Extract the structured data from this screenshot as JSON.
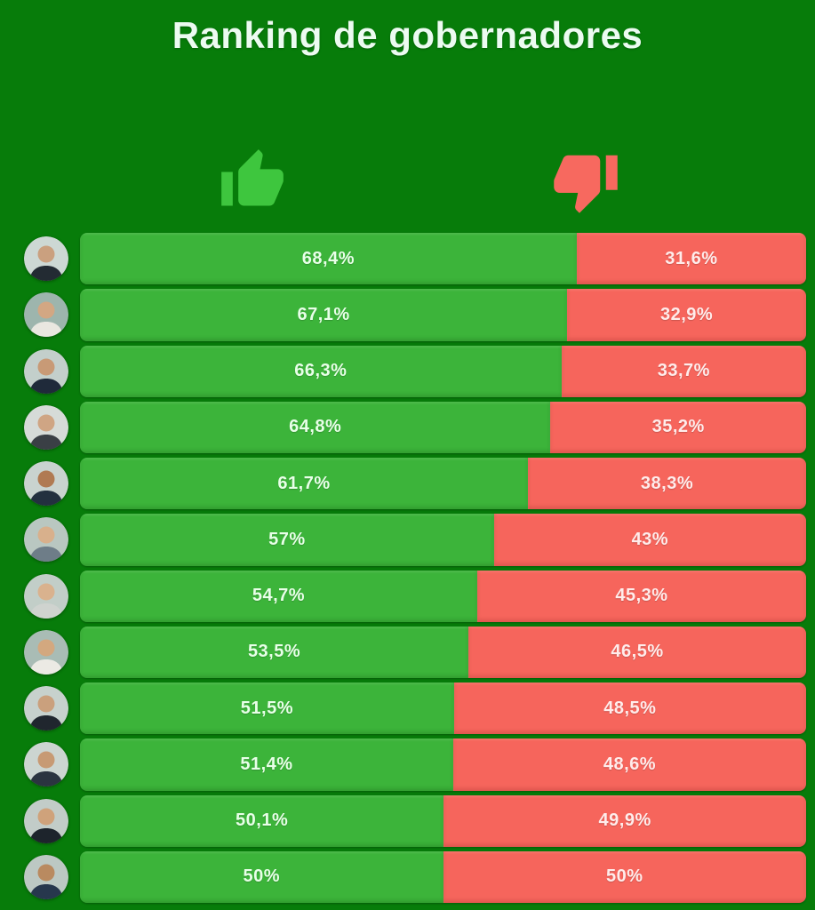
{
  "title": "Ranking de gobernadores",
  "colors": {
    "page_bg": "#077c0a",
    "title_color": "#ecfbf1",
    "bar_green": "#3cb43a",
    "bar_red": "#f6655c",
    "thumb_up": "#3ec63e",
    "thumb_down": "#f7695f",
    "label_on_green": "#e8ffe8",
    "label_on_red": "#ffeceb"
  },
  "legend": {
    "approve_icon": "thumbs-up-icon",
    "disapprove_icon": "thumbs-down-icon"
  },
  "chart_data": {
    "type": "bar",
    "orientation": "horizontal-stacked",
    "title": "Ranking de gobernadores",
    "series": [
      {
        "name": "aprobacion",
        "color": "#3cb43a"
      },
      {
        "name": "desaprobacion",
        "color": "#f6655c"
      }
    ],
    "value_range": [
      0,
      100
    ],
    "rows": [
      {
        "approve": 68.4,
        "disapprove": 31.6,
        "approve_label": "68,4%",
        "disapprove_label": "31,6%",
        "avatar": {
          "bg": "#cdd8d4",
          "suit": "#232b33",
          "skin": "#caa07f"
        }
      },
      {
        "approve": 67.1,
        "disapprove": 32.9,
        "approve_label": "67,1%",
        "disapprove_label": "32,9%",
        "avatar": {
          "bg": "#9db5ad",
          "suit": "#e9e7e0",
          "skin": "#d2a783"
        }
      },
      {
        "approve": 66.3,
        "disapprove": 33.7,
        "approve_label": "66,3%",
        "disapprove_label": "33,7%",
        "avatar": {
          "bg": "#c3cfcb",
          "suit": "#1f2a3a",
          "skin": "#c89a76"
        }
      },
      {
        "approve": 64.8,
        "disapprove": 35.2,
        "approve_label": "64,8%",
        "disapprove_label": "35,2%",
        "avatar": {
          "bg": "#d6dbd8",
          "suit": "#3a3f45",
          "skin": "#cfa584"
        }
      },
      {
        "approve": 61.7,
        "disapprove": 38.3,
        "approve_label": "61,7%",
        "disapprove_label": "38,3%",
        "avatar": {
          "bg": "#c9d3cf",
          "suit": "#23303f",
          "skin": "#b07a52"
        }
      },
      {
        "approve": 57.0,
        "disapprove": 43.0,
        "approve_label": "57%",
        "disapprove_label": "43%",
        "avatar": {
          "bg": "#b9c7c1",
          "suit": "#6e7d88",
          "skin": "#d8b08c"
        }
      },
      {
        "approve": 54.7,
        "disapprove": 45.3,
        "approve_label": "54,7%",
        "disapprove_label": "45,3%",
        "avatar": {
          "bg": "#c2cec8",
          "suit": "#cfd3cf",
          "skin": "#d9b28e"
        }
      },
      {
        "approve": 53.5,
        "disapprove": 46.5,
        "approve_label": "53,5%",
        "disapprove_label": "46,5%",
        "avatar": {
          "bg": "#a9bcb5",
          "suit": "#eceae4",
          "skin": "#d3a87f"
        }
      },
      {
        "approve": 51.5,
        "disapprove": 48.5,
        "approve_label": "51,5%",
        "disapprove_label": "48,5%",
        "avatar": {
          "bg": "#c7d1cd",
          "suit": "#20262e",
          "skin": "#caa07d"
        }
      },
      {
        "approve": 51.4,
        "disapprove": 48.6,
        "approve_label": "51,4%",
        "disapprove_label": "48,6%",
        "avatar": {
          "bg": "#ccd5d1",
          "suit": "#2b3440",
          "skin": "#c79a74"
        }
      },
      {
        "approve": 50.1,
        "disapprove": 49.9,
        "approve_label": "50,1%",
        "disapprove_label": "49,9%",
        "avatar": {
          "bg": "#c2ccc8",
          "suit": "#1d242c",
          "skin": "#cfa27b"
        }
      },
      {
        "approve": 50.0,
        "disapprove": 50.0,
        "approve_label": "50%",
        "disapprove_label": "50%",
        "avatar": {
          "bg": "#bcc8c3",
          "suit": "#27374d",
          "skin": "#b98a60"
        }
      }
    ]
  }
}
